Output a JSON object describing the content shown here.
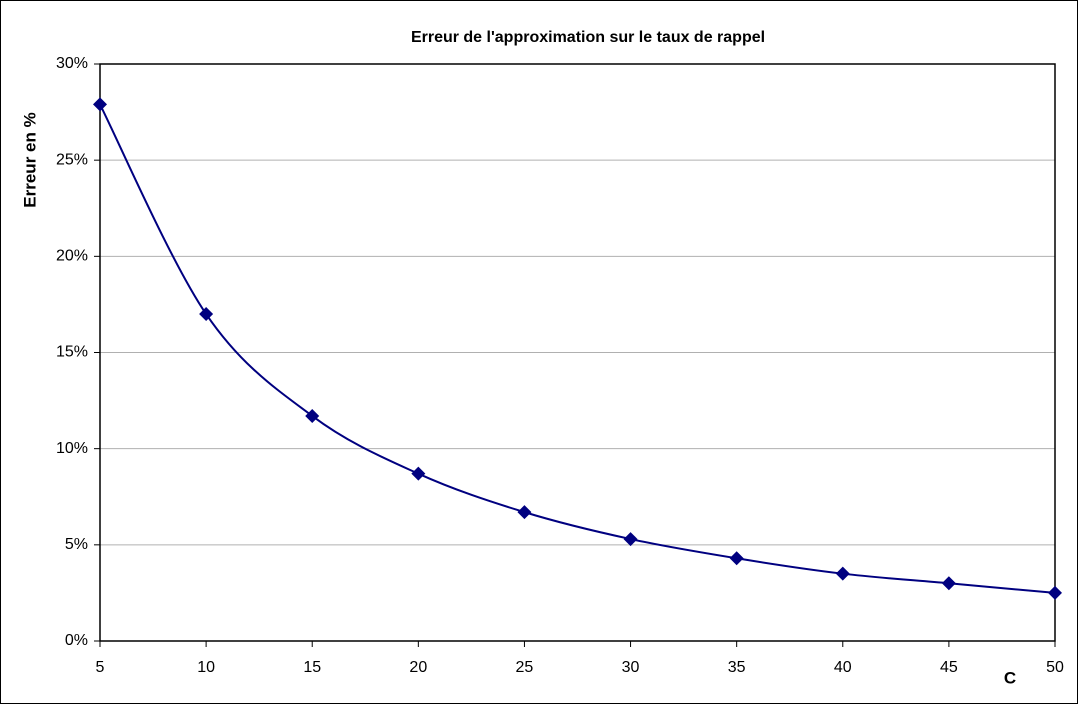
{
  "chart_data": {
    "type": "line",
    "title": "Erreur de l'approximation sur le taux de rappel",
    "xlabel": "C",
    "ylabel": "Erreur en %",
    "x": [
      5,
      10,
      15,
      20,
      25,
      30,
      35,
      40,
      45,
      50
    ],
    "series": [
      {
        "name": "Erreur",
        "color": "#000080",
        "values": [
          27.9,
          17.0,
          11.7,
          8.7,
          6.7,
          5.3,
          4.3,
          3.5,
          3.0,
          2.5
        ]
      }
    ],
    "xlim": [
      5,
      50
    ],
    "xticks": [
      5,
      10,
      15,
      20,
      25,
      30,
      35,
      40,
      45,
      50
    ],
    "ylim": [
      0,
      30
    ],
    "yticks": [
      {
        "value": 0,
        "label": "0%"
      },
      {
        "value": 5,
        "label": "5%"
      },
      {
        "value": 10,
        "label": "10%"
      },
      {
        "value": 15,
        "label": "15%"
      },
      {
        "value": 20,
        "label": "20%"
      },
      {
        "value": 25,
        "label": "25%"
      },
      {
        "value": 30,
        "label": "30%"
      }
    ],
    "grid": true,
    "smooth": true
  }
}
